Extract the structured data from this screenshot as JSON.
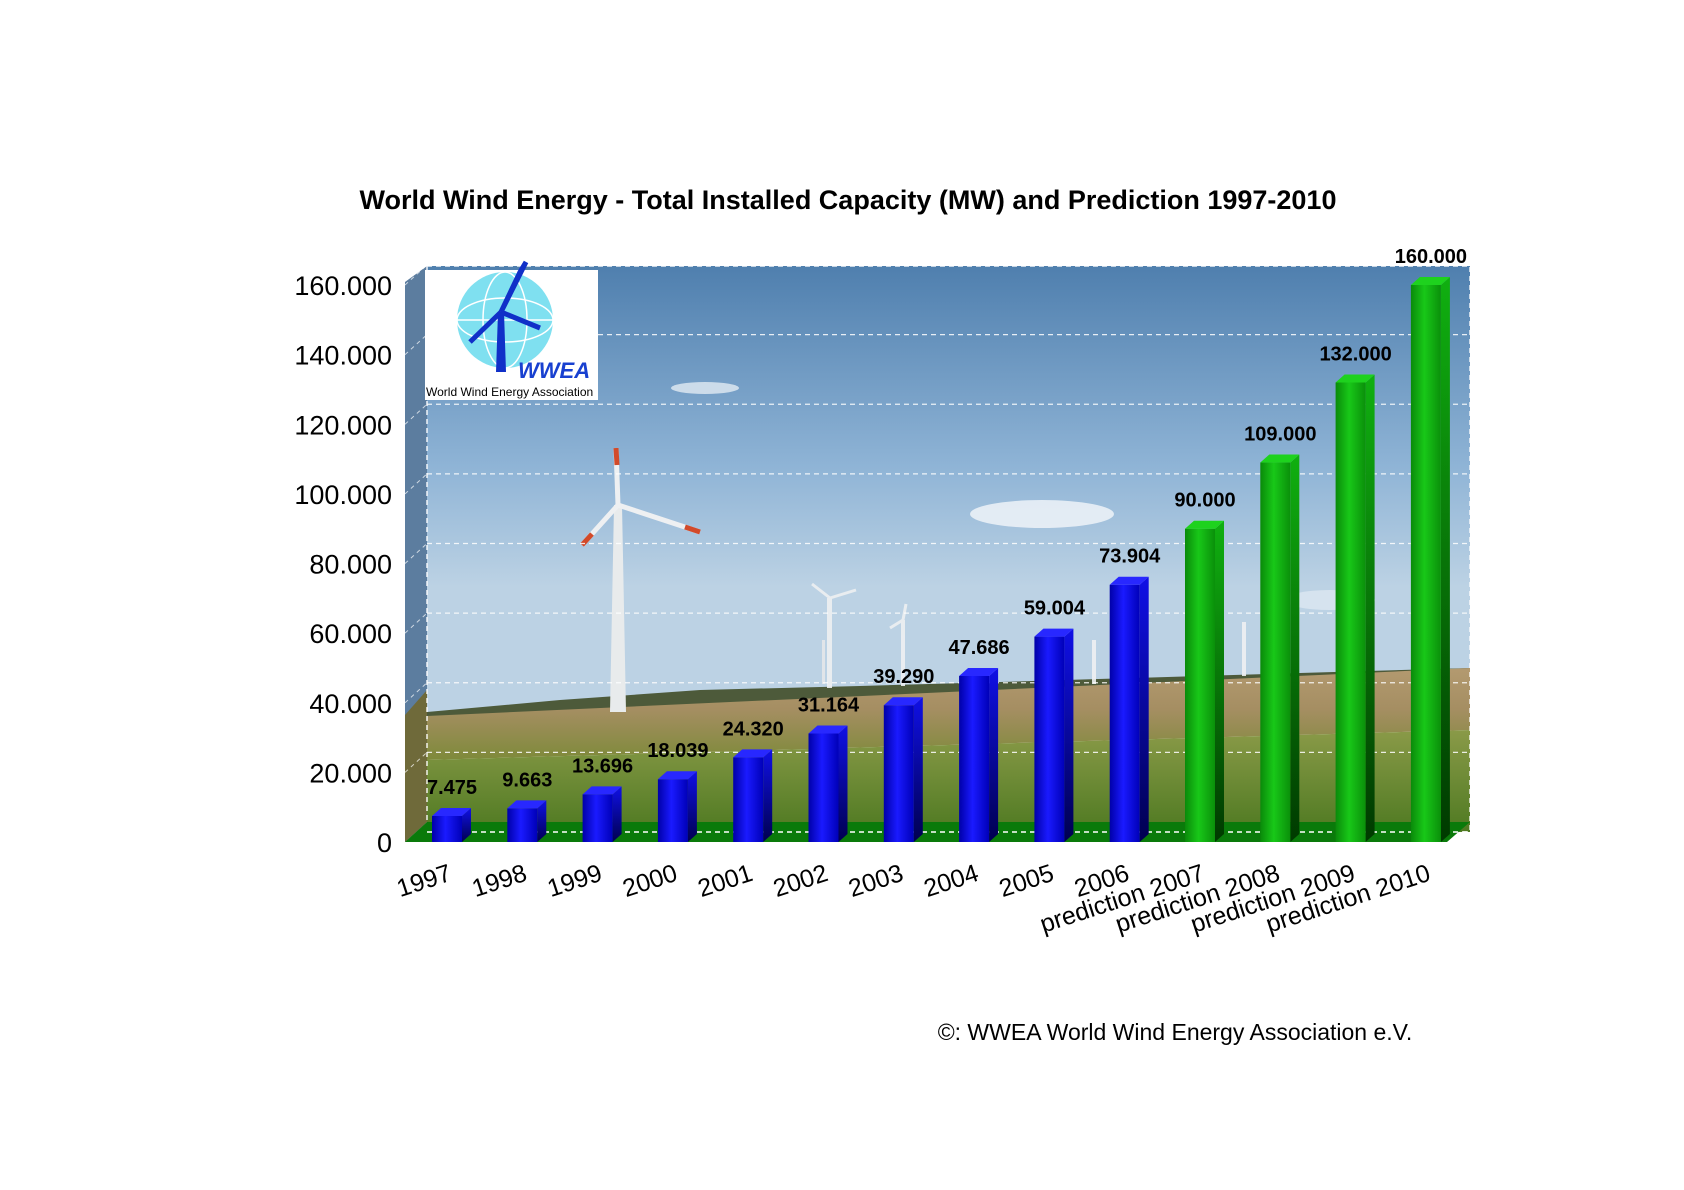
{
  "colors": {
    "actual": "#1010e6",
    "prediction": "#10b010",
    "floor": "#0a7a0a",
    "logo_text": "#1840d0"
  },
  "logo": {
    "name": "WWEA",
    "subtitle": "World Wind Energy Association"
  },
  "copyright": "©: WWEA World Wind Energy Association e.V.",
  "chart_data": {
    "type": "bar",
    "title": "World Wind Energy - Total Installed Capacity (MW) and Prediction 1997-2010",
    "xlabel": "",
    "ylabel": "",
    "ylim": [
      0,
      160000
    ],
    "yticks": [
      0,
      20000,
      40000,
      60000,
      80000,
      100000,
      120000,
      140000,
      160000
    ],
    "ytick_labels": [
      "0",
      "20.000",
      "40.000",
      "60.000",
      "80.000",
      "100.000",
      "120.000",
      "140.000",
      "160.000"
    ],
    "grid": true,
    "categories": [
      "1997",
      "1998",
      "1999",
      "2000",
      "2001",
      "2002",
      "2003",
      "2004",
      "2005",
      "2006",
      "prediction 2007",
      "prediction 2008",
      "prediction 2009",
      "prediction 2010"
    ],
    "values": [
      7475,
      9663,
      13696,
      18039,
      24320,
      31164,
      39290,
      47686,
      59004,
      73904,
      90000,
      109000,
      132000,
      160000
    ],
    "value_labels": [
      "7.475",
      "9.663",
      "13.696",
      "18.039",
      "24.320",
      "31.164",
      "39.290",
      "47.686",
      "59.004",
      "73.904",
      "90.000",
      "109.000",
      "132.000",
      "160.000"
    ],
    "bar_kind": [
      "actual",
      "actual",
      "actual",
      "actual",
      "actual",
      "actual",
      "actual",
      "actual",
      "actual",
      "actual",
      "prediction",
      "prediction",
      "prediction",
      "prediction"
    ]
  }
}
